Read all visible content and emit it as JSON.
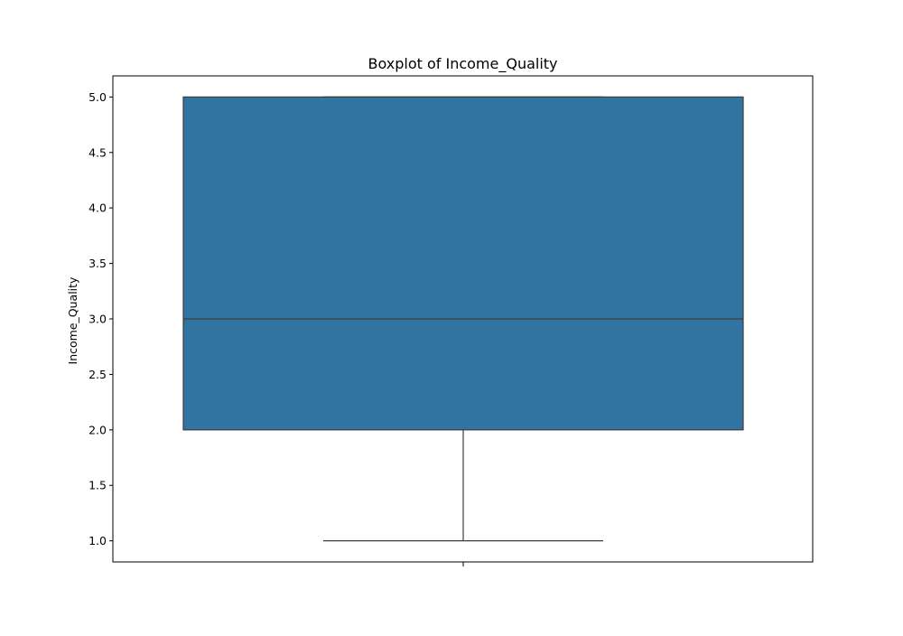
{
  "chart_data": {
    "type": "boxplot",
    "title": "Boxplot of Income_Quality",
    "xlabel": "",
    "ylabel": "Income_Quality",
    "ylim": [
      0.81,
      5.19
    ],
    "yticks": [
      1.0,
      1.5,
      2.0,
      2.5,
      3.0,
      3.5,
      4.0,
      4.5,
      5.0
    ],
    "ytick_labels": [
      "1.0",
      "1.5",
      "2.0",
      "2.5",
      "3.0",
      "3.5",
      "4.0",
      "4.5",
      "5.0"
    ],
    "grid": false,
    "box": {
      "whisker_low": 1.0,
      "q1": 2.0,
      "median": 3.0,
      "q3": 5.0,
      "whisker_high": 5.0
    },
    "colors": {
      "box_fill": "#3274a1",
      "line": "#3d3d3d",
      "axes": "#000000"
    }
  }
}
